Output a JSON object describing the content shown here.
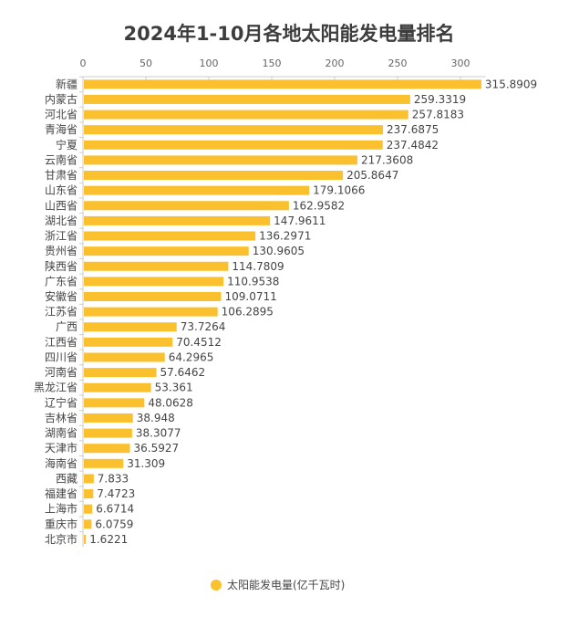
{
  "chart_data": {
    "type": "bar",
    "orientation": "horizontal",
    "title": "2024年1-10月各地太阳能发电量排名",
    "xlim": [
      0,
      320
    ],
    "xticks": [
      0,
      50,
      100,
      150,
      200,
      250,
      300
    ],
    "grid": false,
    "legend_position": "bottom-center",
    "color": "#FBC02D",
    "series": [
      {
        "name": "太阳能发电量(亿千瓦时)",
        "categories": [
          "新疆",
          "内蒙古",
          "河北省",
          "青海省",
          "宁夏",
          "云南省",
          "甘肃省",
          "山东省",
          "山西省",
          "湖北省",
          "浙江省",
          "贵州省",
          "陕西省",
          "广东省",
          "安徽省",
          "江苏省",
          "广西",
          "江西省",
          "四川省",
          "河南省",
          "黑龙江省",
          "辽宁省",
          "吉林省",
          "湖南省",
          "天津市",
          "海南省",
          "西藏",
          "福建省",
          "上海市",
          "重庆市",
          "北京市"
        ],
        "values": [
          "315.8909",
          "259.3319",
          "257.8183",
          "237.6875",
          "237.4842",
          "217.3608",
          "205.8647",
          "179.1066",
          "162.9582",
          "147.9611",
          "136.2971",
          "130.9605",
          "114.7809",
          "110.9538",
          "109.0711",
          "106.2895",
          "73.7264",
          "70.4512",
          "64.2965",
          "57.6462",
          "53.361",
          "48.0628",
          "38.948",
          "38.3077",
          "36.5927",
          "31.309",
          "7.833",
          "7.4723",
          "6.6714",
          "6.0759",
          "1.6221"
        ]
      }
    ]
  }
}
